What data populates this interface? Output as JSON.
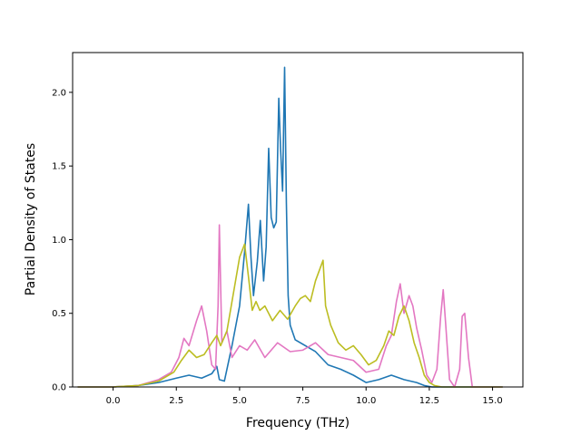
{
  "chart_data": {
    "type": "line",
    "title": "",
    "xlabel": "Frequency (THz)",
    "ylabel": "Partial Density of States",
    "xlim": [
      -1.6,
      16.2
    ],
    "ylim": [
      0.0,
      2.27
    ],
    "xticks": [
      0.0,
      2.5,
      5.0,
      7.5,
      10.0,
      12.5,
      15.0
    ],
    "yticks": [
      0.0,
      0.5,
      1.0,
      1.5,
      2.0
    ],
    "xtick_labels": [
      "0.0",
      "2.5",
      "5.0",
      "7.5",
      "10.0",
      "12.5",
      "15.0"
    ],
    "ytick_labels": [
      "0.0",
      "0.5",
      "1.0",
      "1.5",
      "2.0"
    ],
    "grid": false,
    "legend": "none",
    "series": [
      {
        "color": "#1f77b4",
        "x": [
          -1.4,
          0.0,
          1.0,
          1.8,
          2.5,
          3.0,
          3.5,
          3.9,
          4.1,
          4.2,
          4.4,
          4.7,
          5.0,
          5.2,
          5.35,
          5.45,
          5.55,
          5.7,
          5.82,
          5.95,
          6.05,
          6.15,
          6.25,
          6.35,
          6.45,
          6.55,
          6.62,
          6.7,
          6.78,
          6.85,
          6.92,
          7.0,
          7.2,
          7.6,
          8.0,
          8.5,
          9.0,
          9.5,
          10.0,
          10.5,
          11.0,
          11.5,
          12.0,
          12.3,
          12.6,
          13.0,
          14.0,
          15.4
        ],
        "y": [
          0.0,
          0.0,
          0.01,
          0.03,
          0.06,
          0.08,
          0.06,
          0.09,
          0.14,
          0.05,
          0.04,
          0.28,
          0.55,
          0.92,
          1.24,
          0.88,
          0.62,
          0.85,
          1.13,
          0.72,
          0.95,
          1.62,
          1.15,
          1.08,
          1.12,
          1.96,
          1.62,
          1.33,
          2.17,
          1.25,
          0.62,
          0.42,
          0.32,
          0.28,
          0.24,
          0.15,
          0.12,
          0.08,
          0.03,
          0.05,
          0.08,
          0.05,
          0.03,
          0.01,
          0.0,
          0.0,
          0.0,
          0.0
        ]
      },
      {
        "color": "#e377c2",
        "x": [
          -1.4,
          0.0,
          1.0,
          1.8,
          2.3,
          2.6,
          2.8,
          3.0,
          3.3,
          3.5,
          3.7,
          3.9,
          4.05,
          4.15,
          4.2,
          4.3,
          4.5,
          4.7,
          5.0,
          5.3,
          5.6,
          6.0,
          6.5,
          7.0,
          7.5,
          8.0,
          8.5,
          9.0,
          9.5,
          10.0,
          10.5,
          10.8,
          11.0,
          11.2,
          11.35,
          11.5,
          11.7,
          11.85,
          12.0,
          12.2,
          12.4,
          12.6,
          12.8,
          12.95,
          13.05,
          13.15,
          13.3,
          13.5,
          13.7,
          13.8,
          13.9,
          14.05,
          14.2,
          15.4
        ],
        "y": [
          0.0,
          0.0,
          0.01,
          0.05,
          0.1,
          0.2,
          0.33,
          0.28,
          0.45,
          0.55,
          0.38,
          0.15,
          0.12,
          0.55,
          1.1,
          0.3,
          0.38,
          0.2,
          0.28,
          0.25,
          0.32,
          0.2,
          0.3,
          0.24,
          0.25,
          0.3,
          0.22,
          0.2,
          0.18,
          0.1,
          0.12,
          0.28,
          0.35,
          0.58,
          0.7,
          0.5,
          0.62,
          0.55,
          0.4,
          0.25,
          0.08,
          0.03,
          0.12,
          0.48,
          0.66,
          0.42,
          0.05,
          0.0,
          0.12,
          0.48,
          0.5,
          0.2,
          0.0,
          0.0
        ]
      },
      {
        "color": "#bcbd22",
        "x": [
          -1.4,
          0.0,
          1.0,
          1.8,
          2.4,
          2.7,
          3.0,
          3.3,
          3.6,
          3.9,
          4.1,
          4.25,
          4.5,
          4.8,
          5.0,
          5.2,
          5.35,
          5.5,
          5.65,
          5.8,
          6.0,
          6.3,
          6.6,
          6.9,
          7.2,
          7.4,
          7.6,
          7.8,
          8.0,
          8.3,
          8.4,
          8.6,
          8.9,
          9.2,
          9.5,
          9.8,
          10.1,
          10.4,
          10.7,
          10.9,
          11.1,
          11.3,
          11.5,
          11.7,
          11.9,
          12.1,
          12.3,
          12.5,
          12.7,
          13.0,
          15.4
        ],
        "y": [
          0.0,
          0.0,
          0.01,
          0.04,
          0.1,
          0.18,
          0.25,
          0.2,
          0.22,
          0.3,
          0.35,
          0.28,
          0.38,
          0.68,
          0.88,
          0.97,
          0.75,
          0.52,
          0.58,
          0.52,
          0.55,
          0.45,
          0.52,
          0.46,
          0.55,
          0.6,
          0.62,
          0.58,
          0.72,
          0.86,
          0.55,
          0.42,
          0.3,
          0.25,
          0.28,
          0.22,
          0.15,
          0.18,
          0.28,
          0.38,
          0.35,
          0.48,
          0.55,
          0.45,
          0.3,
          0.2,
          0.08,
          0.03,
          0.01,
          0.0,
          0.0
        ]
      }
    ]
  }
}
